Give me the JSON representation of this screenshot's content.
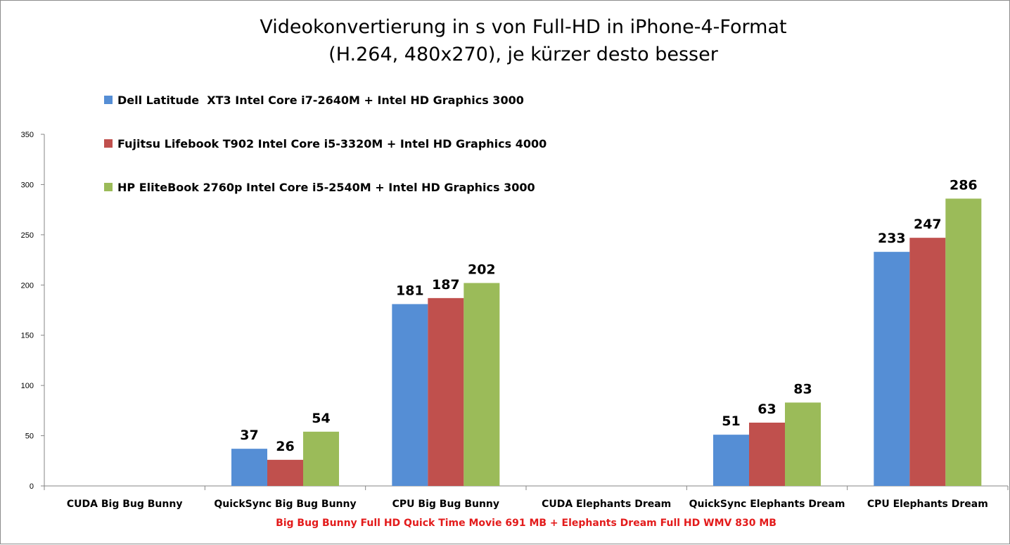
{
  "chart_data": {
    "type": "bar",
    "title_lines": [
      "Videokonvertierung in s von Full-HD in iPhone-4-Format",
      "(H.264, 480x270), je kürzer desto besser"
    ],
    "xlabel": "Big Bug Bunny Full HD Quick Time Movie 691 MB + Elephants Dream Full HD WMV 830 MB",
    "ylabel": "",
    "ylim": [
      0,
      350
    ],
    "yticks": [
      0,
      50,
      100,
      150,
      200,
      250,
      300,
      350
    ],
    "grid": false,
    "legend_position": "top-left",
    "categories": [
      "CUDA Big Bug Bunny",
      "QuickSync Big Bug Bunny",
      "CPU Big Bug Bunny",
      "CUDA Elephants Dream",
      "QuickSync Elephants Dream",
      "CPU Elephants Dream"
    ],
    "series": [
      {
        "name": "Dell Latitude  XT3 Intel Core i7-2640M + Intel HD Graphics 3000",
        "color": "#558ED5",
        "values": [
          null,
          37,
          181,
          null,
          51,
          233
        ]
      },
      {
        "name": "Fujitsu Lifebook T902 Intel Core i5-3320M + Intel HD Graphics 4000",
        "color": "#C0504D",
        "values": [
          null,
          26,
          187,
          null,
          63,
          247
        ]
      },
      {
        "name": "HP EliteBook 2760p Intel Core i5-2540M + Intel HD Graphics 3000",
        "color": "#9BBB59",
        "values": [
          null,
          54,
          202,
          null,
          83,
          286
        ]
      }
    ],
    "xlabel_color": "#E31B1B"
  }
}
